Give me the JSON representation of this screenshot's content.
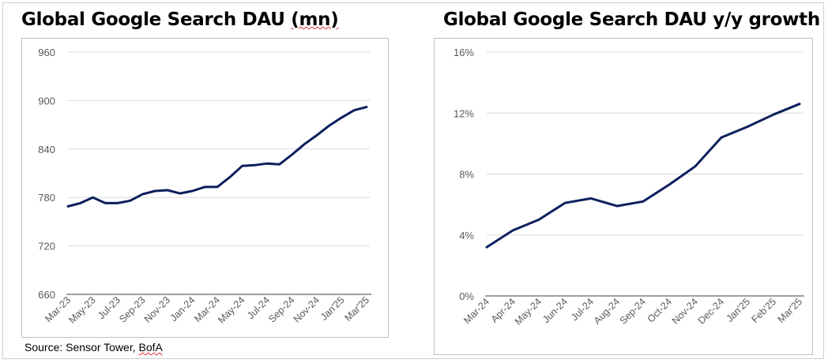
{
  "charts": {
    "left": {
      "title_main": "Global Google Search DAU ",
      "title_paren": "(mn)"
    },
    "right": {
      "title": "Global Google Search DAU y/y growth"
    }
  },
  "source": {
    "prefix": "Source: Sensor Tower, ",
    "brand": "BofA"
  },
  "colors": {
    "line": "#0d1f5c",
    "gridline": "#d9d9d9",
    "axis": "#7f7f7f",
    "tick_text": "#595959"
  },
  "chart_data": [
    {
      "type": "line",
      "title": "Global Google Search DAU (mn)",
      "x": [
        "Mar-23",
        "Apr-23",
        "May-23",
        "Jun-23",
        "Jul-23",
        "Aug-23",
        "Sep-23",
        "Oct-23",
        "Nov-23",
        "Dec-23",
        "Jan-24",
        "Feb-24",
        "Mar-24",
        "Apr-24",
        "May-24",
        "Jun-24",
        "Jul-24",
        "Aug-24",
        "Sep-24",
        "Oct-24",
        "Nov-24",
        "Dec-24",
        "Jan'25",
        "Feb-25",
        "Mar'25"
      ],
      "x_tick_labels": [
        "Mar-23",
        "May-23",
        "Jul-23",
        "Sep-23",
        "Nov-23",
        "Jan-24",
        "Mar-24",
        "May-24",
        "Jul-24",
        "Sep-24",
        "Nov-24",
        "Jan'25",
        "Mar'25"
      ],
      "series": [
        {
          "values": [
            769,
            773,
            780,
            773,
            773,
            776,
            784,
            788,
            789,
            785,
            788,
            793,
            793,
            805,
            819,
            820,
            822,
            821,
            833,
            846,
            857,
            869,
            879,
            888,
            892
          ]
        }
      ],
      "ylim": [
        660,
        960
      ],
      "yticks": [
        660,
        720,
        780,
        840,
        900,
        960
      ],
      "ytick_labels": [
        "660",
        "720",
        "780",
        "840",
        "900",
        "960"
      ],
      "xlabel": "",
      "ylabel": "",
      "grid": true
    },
    {
      "type": "line",
      "title": "Global Google Search DAU y/y growth",
      "x": [
        "Mar-24",
        "Apr-24",
        "May-24",
        "Jun-24",
        "Jul-24",
        "Aug-24",
        "Sep-24",
        "Oct-24",
        "Nov-24",
        "Dec-24",
        "Jan'25",
        "Feb'25",
        "Mar'25"
      ],
      "x_tick_labels": [
        "Mar-24",
        "Apr-24",
        "May-24",
        "Jun-24",
        "Jul-24",
        "Aug-24",
        "Sep-24",
        "Oct-24",
        "Nov-24",
        "Dec-24",
        "Jan'25",
        "Feb'25",
        "Mar'25"
      ],
      "series": [
        {
          "values": [
            3.2,
            4.3,
            5.0,
            6.1,
            6.4,
            5.9,
            6.2,
            7.3,
            8.5,
            10.4,
            11.1,
            11.9,
            12.6
          ]
        }
      ],
      "ylim": [
        0,
        16
      ],
      "yticks": [
        0,
        4,
        8,
        12,
        16
      ],
      "ytick_labels": [
        "0%",
        "4%",
        "8%",
        "12%",
        "16%"
      ],
      "xlabel": "",
      "ylabel": "",
      "grid": true
    }
  ]
}
